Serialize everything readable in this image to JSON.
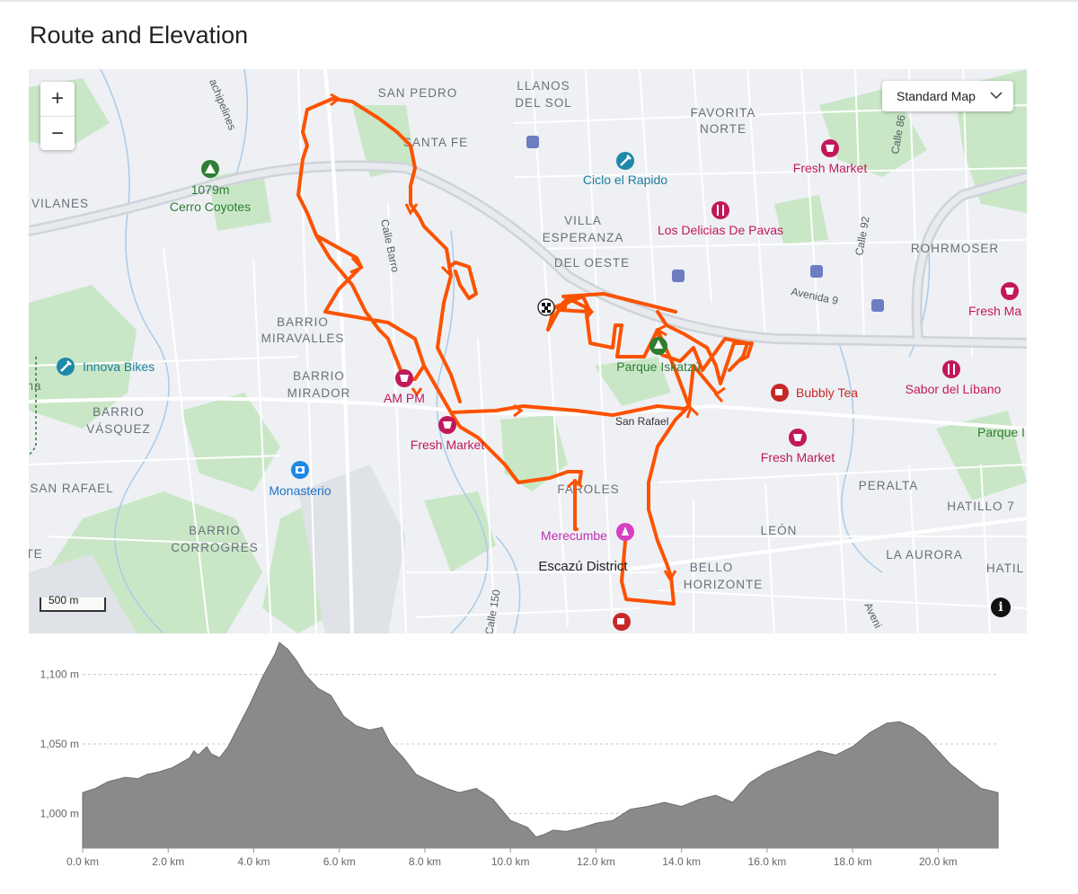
{
  "title": "Route and Elevation",
  "map": {
    "style_selector": "Standard Map",
    "zoom_in": "+",
    "zoom_out": "−",
    "scale_label": "500 m",
    "info_icon": "i",
    "route_color": "#fc5200",
    "district_labels": {
      "san_pedro": "SAN PEDRO",
      "llanos": "LLANOS",
      "del_sol": "DEL SOL",
      "favorita": "FAVORITA",
      "norte": "NORTE",
      "santa_fe": "SANTA FE",
      "villa": "VILLA",
      "esperanza": "ESPERANZA",
      "del_oeste": "DEL OESTE",
      "rohrmoser": "ROHRMOSER",
      "vilanes": "VILANES",
      "barrio_miravalles_1": "BARRIO",
      "barrio_miravalles_2": "MIRAVALLES",
      "barrio_mirador_1": "BARRIO",
      "barrio_mirador_2": "MIRADOR",
      "barrio_vasquez_1": "BARRIO",
      "barrio_vasquez_2": "VÁSQUEZ",
      "san_rafael_left": "SAN RAFAEL",
      "barrio_corrogres_1": "BARRIO",
      "barrio_corrogres_2": "CORROGRES",
      "faroles": "FAROLES",
      "peralta": "PERALTA",
      "hatillo": "HATILLO 7",
      "leon": "LEÓN",
      "la_aurora": "LA AURORA",
      "hatil": "HATIL",
      "bello": "BELLO",
      "horizonte": "HORIZONTE",
      "na": "na",
      "te": "TE"
    },
    "street_labels": {
      "chipelines": "achipelines",
      "calle_barro": "Calle Barro",
      "calle_86": "Calle 86",
      "calle_92": "Calle 92",
      "avenida_9": "Avenida 9",
      "san_rafael": "San Rafael",
      "calle_150": "Calle 150",
      "avenida": "Aveni"
    },
    "pois": {
      "peak_elev": "1079m",
      "peak_name": "Cerro Coyotes",
      "ciclo": "Ciclo el Rapido",
      "fresh_market_1": "Fresh Market",
      "delicias": "Los Delicias De Pavas",
      "fresh_market_right": "Fresh Ma",
      "innova": "Innova Bikes",
      "parque_iskatzu": "Parque Iskatzú",
      "bubbly": "Bubbly Tea",
      "sabor": "Sabor del Líbano",
      "ampm": "AM PM",
      "fresh_market_2": "Fresh Market",
      "fresh_market_3": "Fresh Market",
      "parque_right": "Parque I",
      "monasterio": "Monasterio",
      "merecumbe": "Merecumbe",
      "escazu": "Escazú District"
    }
  },
  "chart_data": {
    "type": "area",
    "title": "",
    "xlabel": "",
    "ylabel": "",
    "x_unit": "km",
    "y_unit": "m",
    "xlim": [
      0,
      21.4
    ],
    "ylim": [
      975,
      1125
    ],
    "x_ticks": [
      "0.0 km",
      "2.0 km",
      "4.0 km",
      "6.0 km",
      "8.0 km",
      "10.0 km",
      "12.0 km",
      "14.0 km",
      "16.0 km",
      "18.0 km",
      "20.0 km"
    ],
    "y_ticks": [
      "1,000 m",
      "1,050 m",
      "1,100 m"
    ],
    "y_tick_values": [
      1000,
      1050,
      1100
    ],
    "x_tick_values": [
      0,
      2,
      4,
      6,
      8,
      10,
      12,
      14,
      16,
      18,
      20
    ],
    "grid": "horizontal dashed",
    "fill_color": "#8a8a8a",
    "points": [
      [
        0,
        1015
      ],
      [
        0.3,
        1018
      ],
      [
        0.6,
        1023
      ],
      [
        1.0,
        1026
      ],
      [
        1.3,
        1025
      ],
      [
        1.5,
        1028
      ],
      [
        1.8,
        1030
      ],
      [
        2.1,
        1033
      ],
      [
        2.5,
        1040
      ],
      [
        2.6,
        1045
      ],
      [
        2.7,
        1042
      ],
      [
        2.9,
        1048
      ],
      [
        3.0,
        1043
      ],
      [
        3.2,
        1040
      ],
      [
        3.4,
        1048
      ],
      [
        3.6,
        1060
      ],
      [
        3.9,
        1078
      ],
      [
        4.2,
        1098
      ],
      [
        4.5,
        1115
      ],
      [
        4.6,
        1123
      ],
      [
        4.8,
        1118
      ],
      [
        5.0,
        1110
      ],
      [
        5.2,
        1100
      ],
      [
        5.5,
        1090
      ],
      [
        5.8,
        1085
      ],
      [
        6.1,
        1070
      ],
      [
        6.4,
        1063
      ],
      [
        6.7,
        1060
      ],
      [
        7.0,
        1062
      ],
      [
        7.2,
        1050
      ],
      [
        7.5,
        1040
      ],
      [
        7.8,
        1028
      ],
      [
        8.0,
        1025
      ],
      [
        8.5,
        1018
      ],
      [
        8.8,
        1015
      ],
      [
        9.2,
        1018
      ],
      [
        9.6,
        1010
      ],
      [
        10.0,
        995
      ],
      [
        10.4,
        990
      ],
      [
        10.6,
        983
      ],
      [
        10.8,
        985
      ],
      [
        11.0,
        988
      ],
      [
        11.3,
        987
      ],
      [
        11.7,
        990
      ],
      [
        12.0,
        993
      ],
      [
        12.4,
        995
      ],
      [
        12.8,
        1003
      ],
      [
        13.2,
        1005
      ],
      [
        13.6,
        1008
      ],
      [
        14.0,
        1005
      ],
      [
        14.4,
        1010
      ],
      [
        14.8,
        1013
      ],
      [
        15.2,
        1008
      ],
      [
        15.6,
        1022
      ],
      [
        16.0,
        1030
      ],
      [
        16.4,
        1035
      ],
      [
        16.8,
        1040
      ],
      [
        17.2,
        1045
      ],
      [
        17.6,
        1042
      ],
      [
        18.0,
        1048
      ],
      [
        18.4,
        1058
      ],
      [
        18.8,
        1065
      ],
      [
        19.1,
        1066
      ],
      [
        19.4,
        1062
      ],
      [
        19.7,
        1055
      ],
      [
        20.0,
        1045
      ],
      [
        20.3,
        1035
      ],
      [
        20.7,
        1025
      ],
      [
        21.0,
        1018
      ],
      [
        21.4,
        1015
      ]
    ]
  }
}
